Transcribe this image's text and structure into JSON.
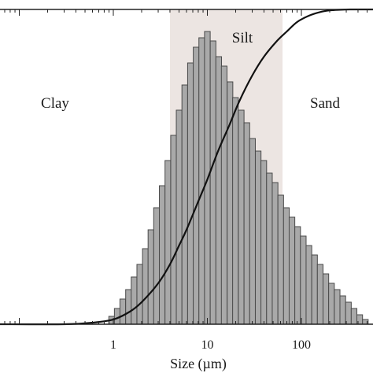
{
  "chart_data": {
    "type": "bar",
    "xlabel": "Size (µm)",
    "x_scale": "log",
    "xlim": [
      0.06,
      600
    ],
    "ylim": [
      0,
      100
    ],
    "x_ticks": [
      {
        "value": 1,
        "label": "1"
      },
      {
        "value": 10,
        "label": "10"
      },
      {
        "value": 100,
        "label": "100"
      }
    ],
    "zones": [
      {
        "label": "Clay",
        "from": 0.06,
        "to": 4
      },
      {
        "label": "Silt",
        "from": 4,
        "to": 63,
        "shaded": true
      },
      {
        "label": "Sand",
        "from": 63,
        "to": 600
      }
    ],
    "bar_color": "#a9a9a9",
    "bar_edge_color": "#4a4a4a",
    "shade_color": "#ece5e2",
    "line_color": "#111111",
    "series": [
      {
        "kind": "bars",
        "x": [
          0.96,
          1.1,
          1.26,
          1.45,
          1.66,
          1.91,
          2.19,
          2.51,
          2.88,
          3.31,
          3.8,
          4.37,
          5.01,
          5.75,
          6.61,
          7.59,
          8.71,
          10.0,
          11.5,
          13.2,
          15.1,
          17.4,
          19.9,
          22.9,
          26.3,
          30.2,
          34.7,
          39.8,
          45.7,
          52.5,
          60.3,
          69.2,
          79.4,
          91.2,
          104.7,
          120.2,
          138.0,
          158.5,
          182.0,
          208.9,
          239.9,
          275.4,
          316.2,
          363.1,
          416.9,
          478.6
        ],
        "values": [
          2.5,
          5,
          8,
          11,
          15,
          19,
          24,
          30,
          37,
          44,
          52,
          60,
          68,
          76,
          83,
          88,
          91,
          93,
          90,
          85,
          82,
          77,
          72,
          68,
          64,
          59,
          55,
          52,
          48,
          45,
          41,
          37,
          34,
          31,
          28,
          25,
          22,
          19,
          16,
          13,
          11,
          9,
          7,
          5,
          3,
          1.5
        ]
      },
      {
        "kind": "cumulative-line",
        "x": [
          0.06,
          0.3,
          0.6,
          1,
          1.5,
          2,
          3,
          4,
          5,
          6,
          8,
          10,
          13,
          17,
          22,
          30,
          40,
          55,
          70,
          90,
          120,
          160,
          200,
          260,
          330,
          420,
          600
        ],
        "values": [
          0,
          0,
          0.5,
          1.5,
          4,
          7,
          13,
          19,
          25,
          30,
          39,
          46,
          55,
          63,
          71,
          79,
          85,
          90,
          93,
          96,
          98,
          99.2,
          99.7,
          99.9,
          100,
          100,
          100
        ]
      }
    ]
  }
}
